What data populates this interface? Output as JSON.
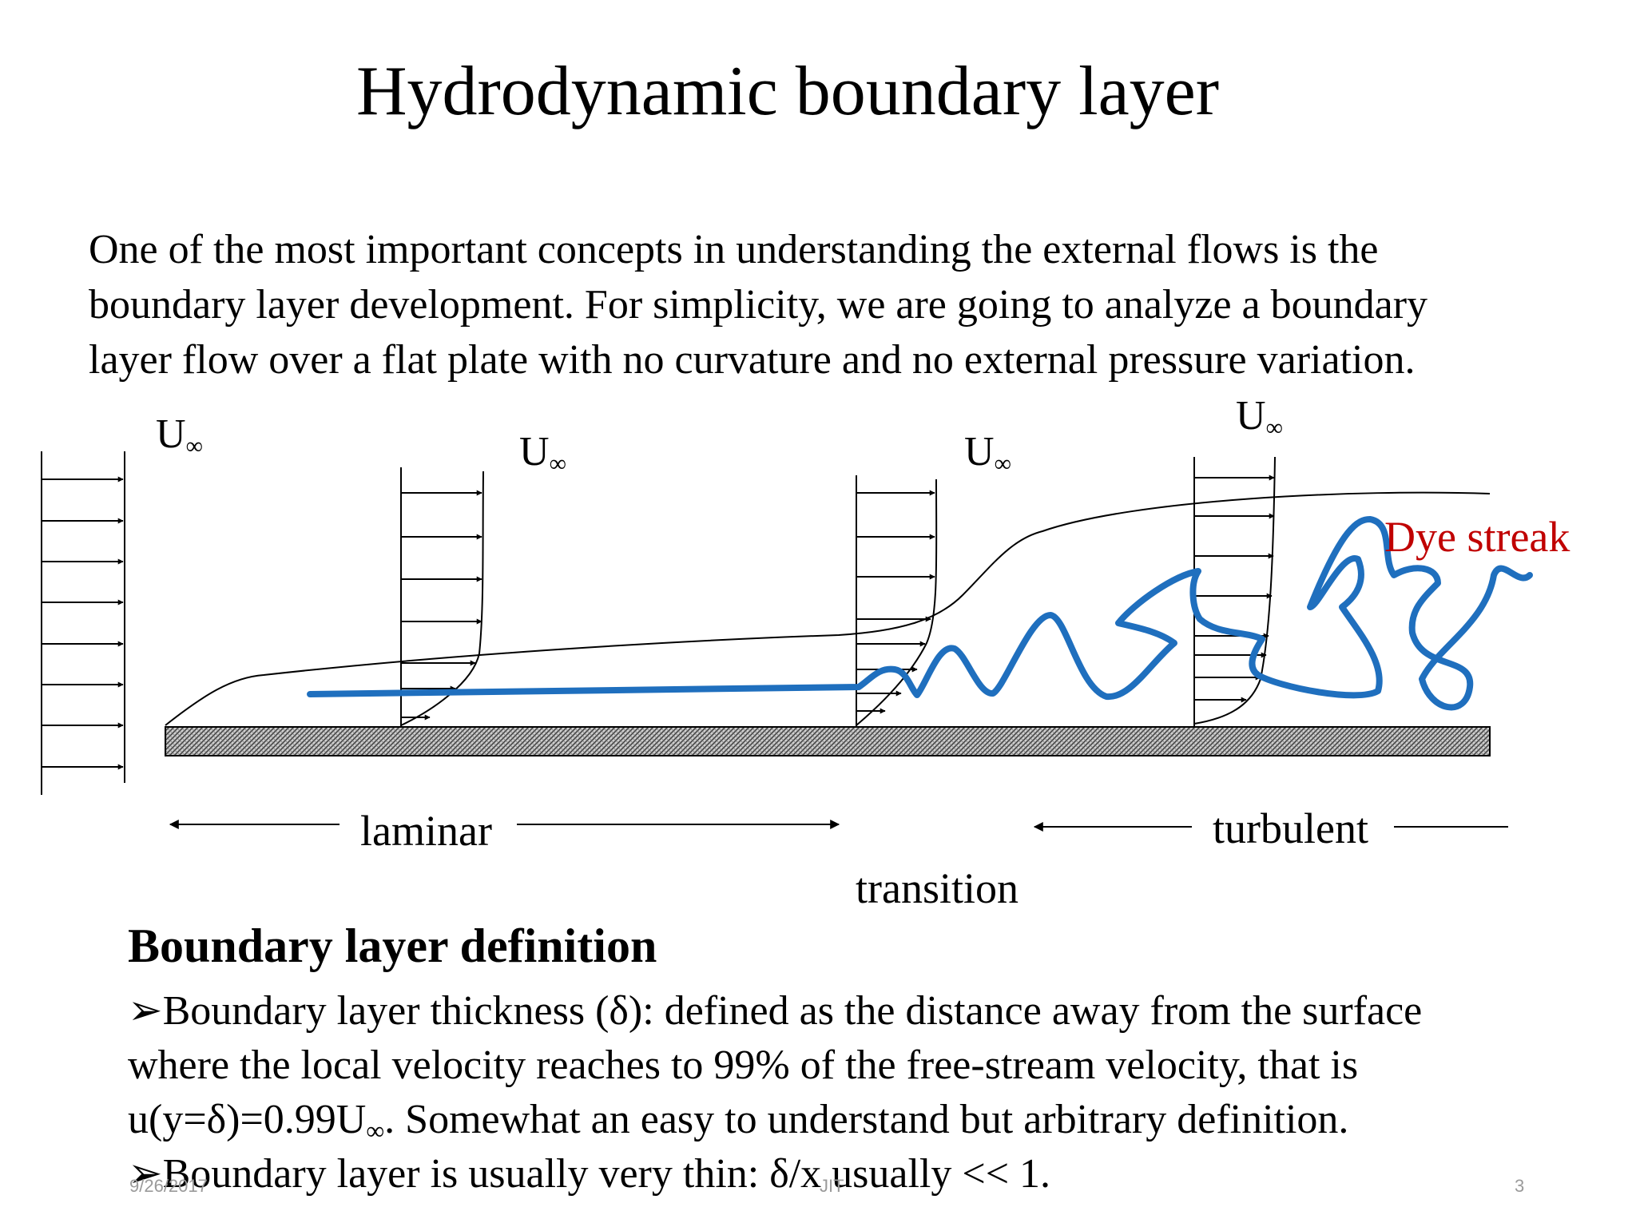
{
  "slide": {
    "title": "Hydrodynamic boundary layer",
    "intro_lines": [
      "One of the most important concepts in understanding the external flows is the",
      "boundary layer development.  For simplicity, we are going to analyze a boundary",
      "layer flow over a flat plate with no curvature and no external pressure variation."
    ]
  },
  "diagram": {
    "u_label": "U",
    "u_subscript": "∞",
    "dye_label": "Dye streak",
    "regions": {
      "laminar": "laminar",
      "transition": "transition",
      "turbulent": "turbulent"
    },
    "colors": {
      "dye": "#1f6fbe",
      "dye_label": "#c00000",
      "ink": "#000000"
    }
  },
  "definition": {
    "heading": "Boundary layer definition",
    "bullet": "➢",
    "b1_l1": "Boundary layer thickness (δ): defined as the distance away from the surface",
    "b1_l2": "where the local velocity reaches to 99% of the free-stream velocity, that is",
    "b1_l3_pre": "u(y=δ)=0.99U",
    "b1_l3_sub": "∞",
    "b1_l3_post": ".  Somewhat an easy to understand but arbitrary definition.",
    "b2": "Boundary layer is usually very thin: δ/x usually << 1."
  },
  "footer": {
    "date": "9/26/2017",
    "center": "JIT",
    "page": "3"
  }
}
